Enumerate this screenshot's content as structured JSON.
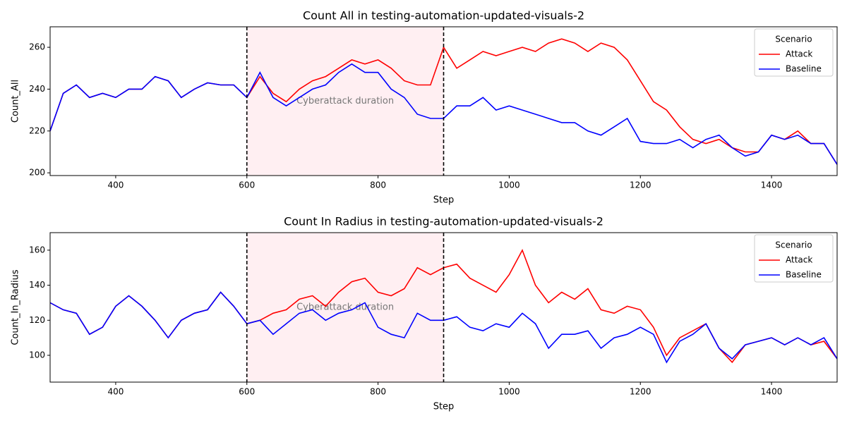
{
  "chart_data": [
    {
      "type": "line",
      "title": "Count All in testing-automation-updated-visuals-2",
      "xlabel": "Step",
      "ylabel": "Count_All",
      "x": [
        300,
        320,
        340,
        360,
        380,
        400,
        420,
        440,
        460,
        480,
        500,
        520,
        540,
        560,
        580,
        600,
        620,
        640,
        660,
        680,
        700,
        720,
        740,
        760,
        780,
        800,
        820,
        840,
        860,
        880,
        900,
        920,
        940,
        960,
        980,
        1000,
        1020,
        1040,
        1060,
        1080,
        1100,
        1120,
        1140,
        1160,
        1180,
        1200,
        1220,
        1240,
        1260,
        1280,
        1300,
        1320,
        1340,
        1360,
        1380,
        1400,
        1420,
        1440,
        1460,
        1480,
        1500
      ],
      "series": [
        {
          "name": "Attack",
          "color": "#ff0000",
          "values": [
            220,
            238,
            242,
            236,
            238,
            236,
            240,
            240,
            246,
            244,
            236,
            240,
            243,
            242,
            242,
            236,
            246,
            238,
            234,
            240,
            244,
            246,
            250,
            254,
            252,
            254,
            250,
            244,
            242,
            242,
            260,
            250,
            254,
            258,
            256,
            258,
            260,
            258,
            262,
            264,
            262,
            258,
            262,
            260,
            254,
            244,
            234,
            230,
            222,
            216,
            214,
            216,
            212,
            210,
            210,
            218,
            216,
            220,
            214,
            214,
            204
          ]
        },
        {
          "name": "Baseline",
          "color": "#0000ff",
          "values": [
            220,
            238,
            242,
            236,
            238,
            236,
            240,
            240,
            246,
            244,
            236,
            240,
            243,
            242,
            242,
            236,
            248,
            236,
            232,
            236,
            240,
            242,
            248,
            252,
            248,
            248,
            240,
            236,
            228,
            226,
            226,
            232,
            232,
            236,
            230,
            232,
            230,
            228,
            226,
            224,
            224,
            220,
            218,
            222,
            226,
            215,
            214,
            214,
            216,
            212,
            216,
            218,
            212,
            208,
            210,
            218,
            216,
            218,
            214,
            214,
            204
          ]
        }
      ],
      "xlim": [
        300,
        1500
      ],
      "ylim": [
        198.7,
        269.8
      ],
      "xticks": [
        400,
        600,
        800,
        1000,
        1200,
        1400
      ],
      "yticks": [
        200,
        220,
        240,
        260
      ],
      "legend_title": "Scenario",
      "legend": "upper right",
      "shaded_span": [
        600,
        900
      ],
      "annotation": "Cyberattack duration"
    },
    {
      "type": "line",
      "title": "Count In Radius in testing-automation-updated-visuals-2",
      "xlabel": "Step",
      "ylabel": "Count_In_Radius",
      "x": [
        300,
        320,
        340,
        360,
        380,
        400,
        420,
        440,
        460,
        480,
        500,
        520,
        540,
        560,
        580,
        600,
        620,
        640,
        660,
        680,
        700,
        720,
        740,
        760,
        780,
        800,
        820,
        840,
        860,
        880,
        900,
        920,
        940,
        960,
        980,
        1000,
        1020,
        1040,
        1060,
        1080,
        1100,
        1120,
        1140,
        1160,
        1180,
        1200,
        1220,
        1240,
        1260,
        1280,
        1300,
        1320,
        1340,
        1360,
        1380,
        1400,
        1420,
        1440,
        1460,
        1480,
        1500
      ],
      "series": [
        {
          "name": "Attack",
          "color": "#ff0000",
          "values": [
            130,
            126,
            124,
            112,
            116,
            128,
            134,
            128,
            120,
            110,
            120,
            124,
            126,
            136,
            128,
            118,
            120,
            124,
            126,
            132,
            134,
            128,
            136,
            142,
            144,
            136,
            134,
            138,
            150,
            146,
            150,
            152,
            144,
            140,
            136,
            146,
            160,
            140,
            130,
            136,
            132,
            138,
            126,
            124,
            128,
            126,
            116,
            100,
            110,
            114,
            118,
            104,
            96,
            106,
            108,
            110,
            106,
            110,
            106,
            108,
            98
          ]
        },
        {
          "name": "Baseline",
          "color": "#0000ff",
          "values": [
            130,
            126,
            124,
            112,
            116,
            128,
            134,
            128,
            120,
            110,
            120,
            124,
            126,
            136,
            128,
            118,
            120,
            112,
            118,
            124,
            126,
            120,
            124,
            126,
            130,
            116,
            112,
            110,
            124,
            120,
            120,
            122,
            116,
            114,
            118,
            116,
            124,
            118,
            104,
            112,
            112,
            114,
            104,
            110,
            112,
            116,
            112,
            96,
            108,
            112,
            118,
            104,
            98,
            106,
            108,
            110,
            106,
            110,
            106,
            110,
            98
          ]
        }
      ],
      "xlim": [
        300,
        1500
      ],
      "ylim": [
        84.7,
        170
      ],
      "xticks": [
        400,
        600,
        800,
        1000,
        1200,
        1400
      ],
      "yticks": [
        100,
        120,
        140,
        160
      ],
      "legend_title": "Scenario",
      "legend": "upper right",
      "shaded_span": [
        600,
        900
      ],
      "annotation": "Cyberattack duration"
    }
  ]
}
